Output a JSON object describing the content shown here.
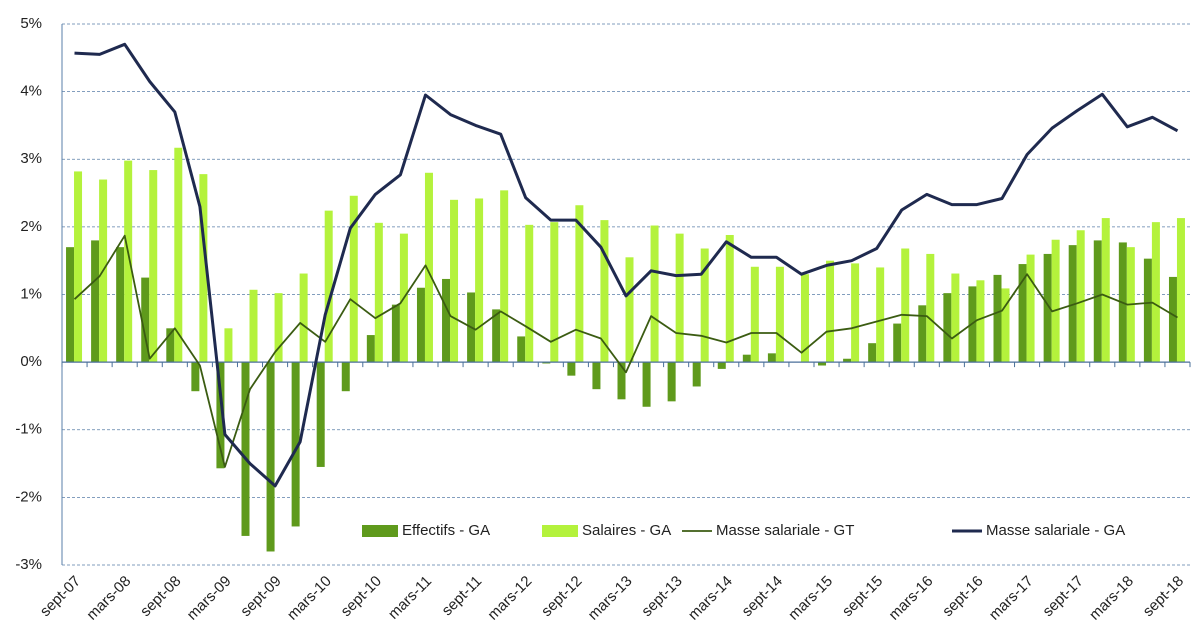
{
  "chart_data": {
    "type": "bar-line",
    "categories": [
      "sept-07",
      null,
      "mars-08",
      null,
      "sept-08",
      null,
      "mars-09",
      null,
      "sept-09",
      null,
      "mars-10",
      null,
      "sept-10",
      null,
      "mars-11",
      null,
      "sept-11",
      null,
      "mars-12",
      null,
      "sept-12",
      null,
      "mars-13",
      null,
      "sept-13",
      null,
      "mars-14",
      null,
      "sept-14",
      null,
      "mars-15",
      null,
      "sept-15",
      null,
      "mars-16",
      null,
      "sept-16",
      null,
      "mars-17",
      null,
      "sept-17",
      null,
      "mars-18",
      null,
      "sept-18"
    ],
    "series": [
      {
        "name": "Effectifs - GA",
        "type": "bar",
        "color": "#5f9a1c",
        "values": [
          1.7,
          1.8,
          1.7,
          1.25,
          0.5,
          -0.43,
          -1.57,
          -2.57,
          -2.8,
          -2.43,
          -1.55,
          -0.43,
          0.4,
          0.85,
          1.1,
          1.23,
          1.03,
          0.78,
          0.38,
          -0.02,
          -0.2,
          -0.4,
          -0.55,
          -0.66,
          -0.58,
          -0.36,
          -0.1,
          0.11,
          0.13,
          0,
          -0.05,
          0.05,
          0.28,
          0.57,
          0.84,
          1.02,
          1.12,
          1.29,
          1.45,
          1.6,
          1.73,
          1.8,
          1.77,
          1.53,
          1.26
        ]
      },
      {
        "name": "Salaires - GA",
        "type": "bar",
        "color": "#b4f23c",
        "values": [
          2.82,
          2.7,
          2.98,
          2.84,
          3.17,
          2.78,
          0.5,
          1.07,
          1.02,
          1.31,
          2.24,
          2.46,
          2.06,
          1.9,
          2.8,
          2.4,
          2.42,
          2.54,
          2.03,
          2.07,
          2.32,
          2.1,
          1.55,
          2.02,
          1.9,
          1.68,
          1.88,
          1.41,
          1.41,
          1.3,
          1.5,
          1.46,
          1.4,
          1.68,
          1.6,
          1.31,
          1.21,
          1.09,
          1.59,
          1.81,
          1.95,
          2.13,
          1.7,
          2.07,
          2.13
        ]
      },
      {
        "name": "Masse salariale - GT",
        "type": "line",
        "color": "#3b5c12",
        "values": [
          0.93,
          1.27,
          1.87,
          0.05,
          0.5,
          -0.05,
          -1.55,
          -0.4,
          0.15,
          0.58,
          0.3,
          0.93,
          0.65,
          0.87,
          1.43,
          0.68,
          0.48,
          0.75,
          0.53,
          0.3,
          0.48,
          0.35,
          -0.15,
          0.68,
          0.43,
          0.39,
          0.29,
          0.43,
          0.43,
          0.14,
          0.45,
          0.5,
          0.6,
          0.7,
          0.68,
          0.35,
          0.62,
          0.76,
          1.3,
          0.75,
          0.87,
          1.0,
          0.85,
          0.88,
          0.66
        ]
      },
      {
        "name": "Masse salariale - GA",
        "type": "line",
        "color": "#1f2a4f",
        "values": [
          4.57,
          4.55,
          4.7,
          4.15,
          3.7,
          2.3,
          -1.07,
          -1.5,
          -1.83,
          -1.18,
          0.7,
          1.98,
          2.48,
          2.77,
          3.95,
          3.66,
          3.5,
          3.37,
          2.43,
          2.1,
          2.1,
          1.7,
          0.98,
          1.35,
          1.28,
          1.3,
          1.78,
          1.55,
          1.55,
          1.3,
          1.43,
          1.5,
          1.68,
          2.25,
          2.48,
          2.33,
          2.33,
          2.42,
          3.07,
          3.46,
          3.72,
          3.96,
          3.48,
          3.62,
          3.42
        ]
      }
    ],
    "ylim": [
      -3,
      5
    ],
    "yticks": [
      {
        "value": -3,
        "label": "-3%"
      },
      {
        "value": -2,
        "label": "-2%"
      },
      {
        "value": -1,
        "label": "-1%"
      },
      {
        "value": 0,
        "label": "0%"
      },
      {
        "value": 1,
        "label": "1%"
      },
      {
        "value": 2,
        "label": "2%"
      },
      {
        "value": 3,
        "label": "3%"
      },
      {
        "value": 4,
        "label": "4%"
      },
      {
        "value": 5,
        "label": "5%"
      }
    ],
    "grid": true,
    "legend": "lower right"
  }
}
